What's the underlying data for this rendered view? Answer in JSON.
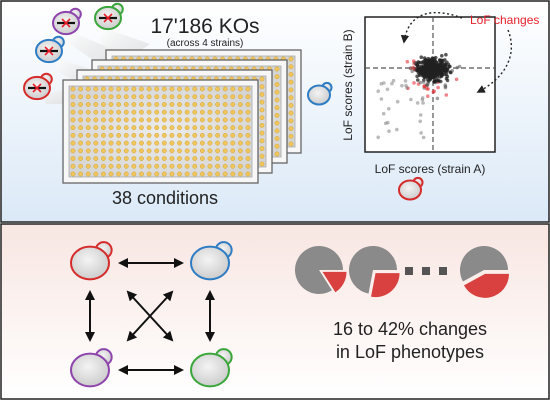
{
  "top_panel": {
    "ko_count": "17'186 KOs",
    "ko_subtitle": "(across 4 strains)",
    "conditions_label": "38 conditions",
    "strain_colors": [
      "#8e44ad",
      "#3aa63a",
      "#2e7cc4",
      "#d62b2b"
    ]
  },
  "scatter": {
    "annotation": "LoF changes",
    "xlabel": "LoF scores (strain A)",
    "ylabel": "LoF scores (strain B)",
    "colors": {
      "changed": "#e8202a",
      "unchanged": "#222222"
    }
  },
  "bottom_panel": {
    "summary_line1": "16 to 42% changes",
    "summary_line2": "in LoF phenotypes",
    "pie_fractions": [
      0.16,
      0.28,
      0.42
    ]
  }
}
